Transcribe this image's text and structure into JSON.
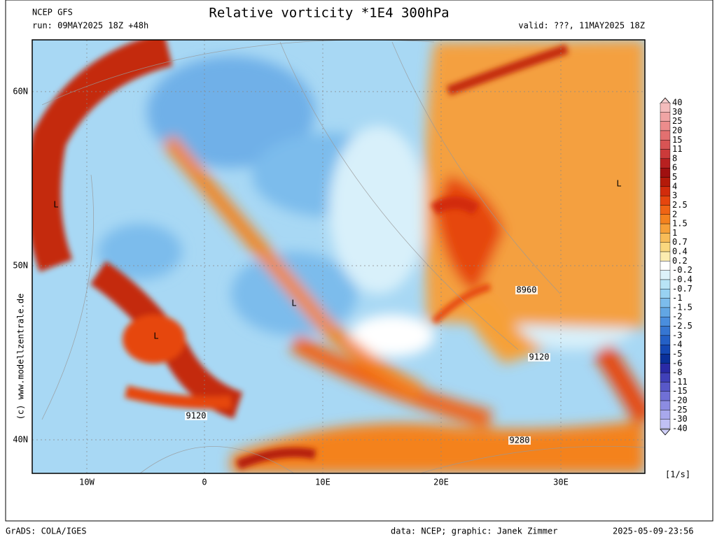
{
  "header": {
    "model": "NCEP GFS",
    "run": "run: 09MAY2025 18Z +48h",
    "title": "Relative vorticity *1E4 300hPa",
    "valid": "valid: ???, 11MAY2025 18Z"
  },
  "map": {
    "lat_labels": [
      "60N",
      "50N",
      "40N"
    ],
    "lon_labels": [
      "10W",
      "0",
      "10E",
      "20E",
      "30E"
    ],
    "labels": [
      "L",
      "L",
      "L",
      "L",
      "8960",
      "9120",
      "9120",
      "9280"
    ],
    "copyright": "(c) www.modellzentrale.de"
  },
  "colorbar": {
    "labels": [
      "40",
      "30",
      "25",
      "20",
      "15",
      "11",
      "8",
      "6",
      "5",
      "4",
      "3",
      "2.5",
      "2",
      "1.5",
      "1",
      "0.7",
      "0.4",
      "0.2",
      "-0.2",
      "-0.4",
      "-0.7",
      "-1",
      "-1.5",
      "-2",
      "-2.5",
      "-3",
      "-4",
      "-5",
      "-6",
      "-8",
      "-11",
      "-15",
      "-20",
      "-25",
      "-30",
      "-40"
    ],
    "colors": [
      "#f4bcbc",
      "#f0a4a4",
      "#ec8c8c",
      "#e27070",
      "#d85454",
      "#cc3a3a",
      "#b82020",
      "#a01010",
      "#b41a0a",
      "#d22c0c",
      "#e6460e",
      "#f06414",
      "#f4821e",
      "#f6a038",
      "#f8bc58",
      "#fad77e",
      "#fcecb0",
      "#ffffff",
      "#dcf2fa",
      "#b8e4f6",
      "#98d2f2",
      "#7cbcec",
      "#62a6e4",
      "#4a8ede",
      "#3676d2",
      "#2460c6",
      "#1448b4",
      "#0a309a",
      "#2a2aa6",
      "#4040b8",
      "#5858c8",
      "#7070d6",
      "#8c8ce2",
      "#a8a8ec",
      "#c0c0f4"
    ],
    "unit": "[1/s]"
  },
  "footer": {
    "left": "GrADS: COLA/IGES",
    "center": "data: NCEP; graphic: Janek Zimmer",
    "right": "2025-05-09-23:56"
  }
}
